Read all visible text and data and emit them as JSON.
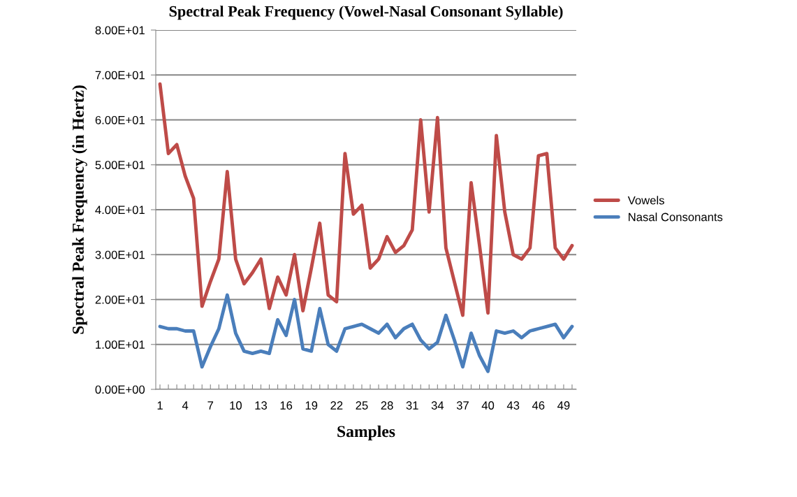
{
  "chart_data": {
    "type": "line",
    "title": "Spectral Peak Frequency (Vowel-Nasal Consonant Syllable)",
    "xlabel": "Samples",
    "ylabel": "Spectral Peak Frequency (in Hertz)",
    "categories": [
      "1",
      null,
      null,
      "4",
      null,
      null,
      "7",
      null,
      null,
      "10",
      null,
      null,
      "13",
      null,
      null,
      "16",
      null,
      null,
      "19",
      null,
      null,
      "22",
      null,
      null,
      "25",
      null,
      null,
      "28",
      null,
      null,
      "31",
      null,
      null,
      "34",
      null,
      null,
      "37",
      null,
      null,
      "40",
      null,
      null,
      "43",
      null,
      null,
      "46",
      null,
      null,
      "49",
      null
    ],
    "series": [
      {
        "name": "Vowels",
        "color": "#be4b48",
        "values": [
          68,
          52.5,
          54.5,
          47.5,
          42.5,
          18.5,
          24,
          29,
          48.5,
          29,
          23.5,
          26,
          29,
          18,
          25,
          21,
          30,
          17.5,
          27,
          37,
          21,
          19.5,
          52.5,
          39,
          41,
          27,
          29,
          34,
          30.5,
          32,
          35.5,
          60,
          39.5,
          60.5,
          31.5,
          24,
          16.5,
          46,
          32,
          17,
          56.5,
          39.5,
          30,
          29,
          31.5,
          52,
          52.5,
          31.5,
          29,
          32
        ]
      },
      {
        "name": "Nasal Consonants",
        "color": "#4a7ebb",
        "values": [
          14,
          13.5,
          13.5,
          13,
          13,
          5,
          9.5,
          13.5,
          21,
          12.5,
          8.5,
          8,
          8.5,
          8,
          15.5,
          12,
          20,
          9,
          8.5,
          18,
          10,
          8.5,
          13.5,
          14,
          14.5,
          13.5,
          12.5,
          14.5,
          11.5,
          13.5,
          14.5,
          11,
          9,
          10.5,
          16.5,
          11,
          5,
          12.5,
          7.5,
          4,
          13,
          12.5,
          13,
          11.5,
          13,
          13.5,
          14,
          14.5,
          11.5,
          14
        ]
      }
    ],
    "ylim": [
      0,
      80
    ],
    "yticks": [
      {
        "value": 0,
        "label": "0.00E+00"
      },
      {
        "value": 10,
        "label": "1.00E+01"
      },
      {
        "value": 20,
        "label": "2.00E+01"
      },
      {
        "value": 30,
        "label": "3.00E+01"
      },
      {
        "value": 40,
        "label": "4.00E+01"
      },
      {
        "value": 50,
        "label": "5.00E+01"
      },
      {
        "value": 60,
        "label": "6.00E+01"
      },
      {
        "value": 70,
        "label": "7.00E+01"
      },
      {
        "value": 80,
        "label": "8.00E+01"
      }
    ],
    "grid": "y",
    "legend": "right",
    "marker": "none",
    "line_style": "solid"
  }
}
